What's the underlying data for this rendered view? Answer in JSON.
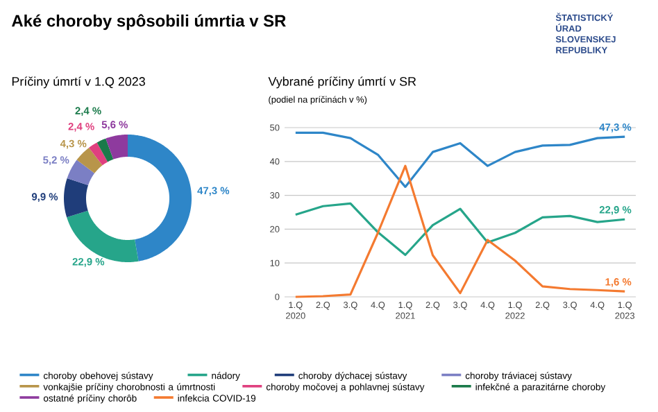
{
  "chart_data": [
    {
      "type": "donut",
      "title": "Aké choroby spôsobili úmrtia v SR",
      "subtitle": "Príčiny úmrtí v 1.Q 2023",
      "categories": [
        "choroby obehovej sústavy",
        "nádory",
        "choroby dýchacej sústavy",
        "choroby tráviacej sústavy",
        "vonkajšie príčiny chorobnosti a úmrtnosti",
        "choroby močovej a pohlavnej sústavy",
        "infekčné a parazitárne choroby",
        "ostatné príčiny chorôb"
      ],
      "values": [
        47.3,
        22.9,
        9.9,
        5.2,
        4.3,
        2.4,
        2.4,
        5.6
      ],
      "value_labels": [
        "47,3 %",
        "22,9 %",
        "9,9 %",
        "5,2 %",
        "4,3 %",
        "2,4 %",
        "2,4 %",
        "5,6 %"
      ],
      "colors": [
        "#2e86c8",
        "#26a58a",
        "#1f3d7a",
        "#7b7fc4",
        "#b8954a",
        "#e0407f",
        "#1a7a4a",
        "#8e3a9e"
      ],
      "legend": "bottom"
    },
    {
      "type": "line",
      "title": "Vybrané príčiny úmrtí v SR",
      "subtitle": "(podiel na príčinách v %)",
      "categories": [
        "1.Q 2020",
        "2.Q",
        "3.Q",
        "4.Q",
        "1.Q 2021",
        "2.Q",
        "3.Q",
        "4.Q",
        "1.Q 2022",
        "2.Q",
        "3.Q",
        "4.Q",
        "1.Q 2023"
      ],
      "series": [
        {
          "color": "#2e86c8",
          "values": [
            48.5,
            48.5,
            46.9,
            42.0,
            32.5,
            42.8,
            45.4,
            38.7,
            42.8,
            44.7,
            44.9,
            46.9,
            47.3
          ],
          "value_labels": [
            null,
            null,
            null,
            null,
            null,
            null,
            null,
            null,
            null,
            null,
            null,
            null,
            "47,3 %"
          ]
        },
        {
          "color": "#26a58a",
          "values": [
            24.3,
            26.8,
            27.6,
            19.1,
            12.4,
            21.2,
            26.0,
            16.1,
            18.9,
            23.5,
            23.9,
            22.1,
            22.9
          ],
          "value_labels": [
            null,
            null,
            null,
            null,
            null,
            null,
            null,
            null,
            null,
            null,
            null,
            null,
            "22,9 %"
          ]
        },
        {
          "name": "infekcia COVID-19",
          "color": "#f47a30",
          "values": [
            0,
            0.2,
            0.7,
            18.9,
            38.7,
            12.3,
            1.1,
            16.8,
            10.7,
            3.1,
            2.3,
            2.0,
            1.6
          ],
          "value_labels": [
            null,
            null,
            null,
            null,
            null,
            null,
            null,
            null,
            null,
            null,
            null,
            null,
            "1,6 %"
          ]
        }
      ],
      "ylim": [
        0,
        50
      ],
      "yticks": [
        0,
        10,
        20,
        30,
        40,
        50
      ],
      "grid": "y",
      "legend": "bottom",
      "annotations": [
        "ŠTATISTICKÝ ÚRAD SLOVENSKEJ REPUBLIKY"
      ]
    }
  ]
}
